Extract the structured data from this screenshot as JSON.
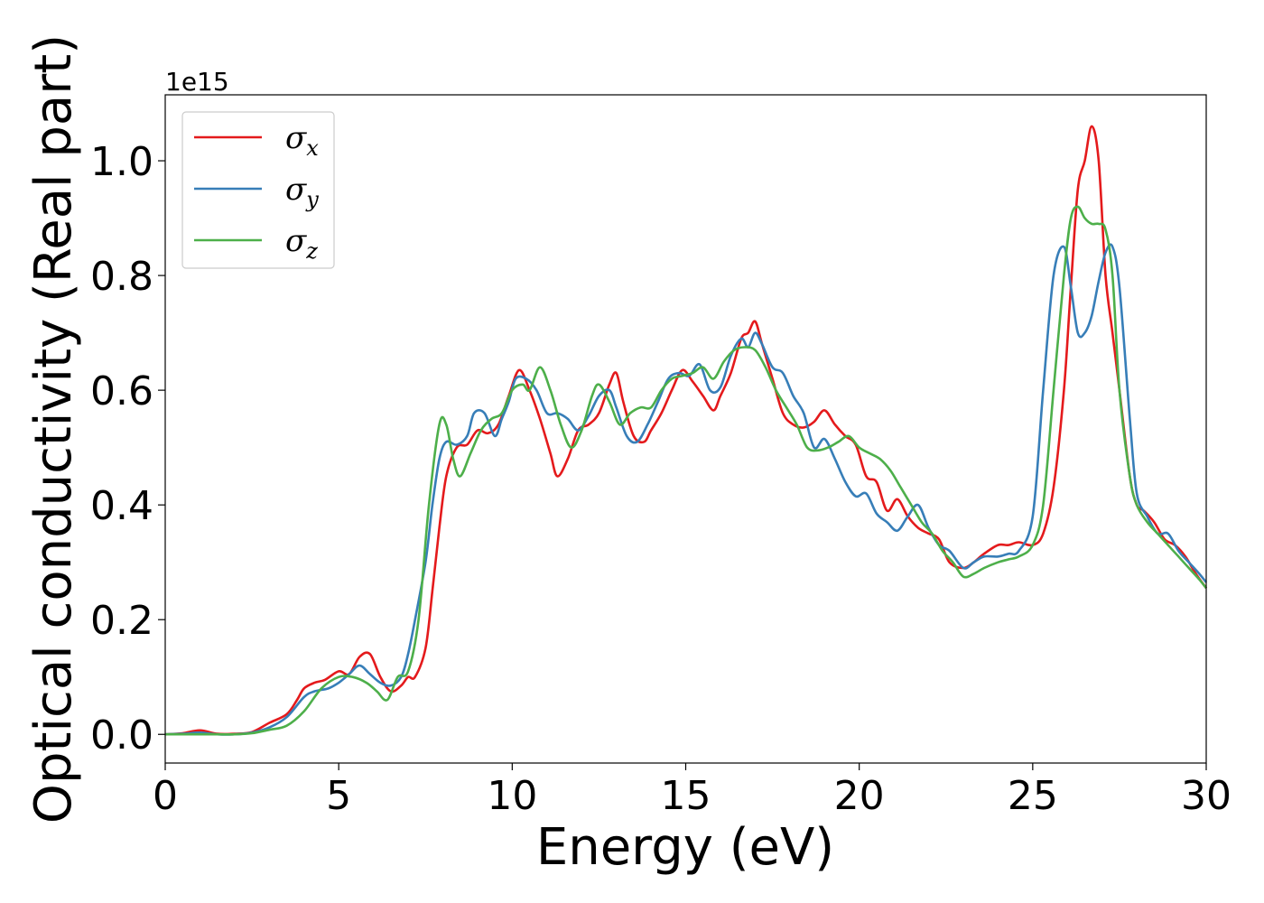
{
  "chart_data": {
    "type": "line",
    "xlabel": "Energy (eV)",
    "ylabel": "Optical conductivity (Real part)",
    "y_offset_label": "1e15",
    "xlim": [
      0,
      30
    ],
    "ylim": [
      -0.05,
      1.115
    ],
    "xticks": [
      0,
      5,
      10,
      15,
      20,
      25,
      30
    ],
    "xtick_labels": [
      "0",
      "5",
      "10",
      "15",
      "20",
      "25",
      "30"
    ],
    "yticks": [
      0.0,
      0.2,
      0.4,
      0.6,
      0.8,
      1.0
    ],
    "ytick_labels": [
      "0.0",
      "0.2",
      "0.4",
      "0.6",
      "0.8",
      "1.0"
    ],
    "grid": false,
    "legend_position": "top-left",
    "series": [
      {
        "name": "σx",
        "subscript": "x",
        "color": "#e41a1c",
        "x": [
          0,
          0.5,
          1,
          1.5,
          2,
          2.5,
          3,
          3.5,
          3.8,
          4,
          4.3,
          4.6,
          5,
          5.3,
          5.6,
          5.9,
          6.2,
          6.5,
          6.8,
          7,
          7.2,
          7.5,
          7.7,
          7.9,
          8.1,
          8.4,
          8.7,
          9,
          9.3,
          9.6,
          9.9,
          10.2,
          10.5,
          10.8,
          11.1,
          11.3,
          11.6,
          11.9,
          12.2,
          12.5,
          12.8,
          13,
          13.2,
          13.5,
          13.8,
          14,
          14.3,
          14.6,
          14.9,
          15.2,
          15.5,
          15.8,
          16,
          16.3,
          16.6,
          16.8,
          17,
          17.2,
          17.5,
          17.8,
          18.1,
          18.4,
          18.7,
          19,
          19.3,
          19.6,
          19.9,
          20.2,
          20.5,
          20.8,
          21.1,
          21.4,
          21.7,
          22,
          22.3,
          22.6,
          23,
          23.3,
          23.6,
          24,
          24.3,
          24.6,
          25,
          25.3,
          25.6,
          25.9,
          26.1,
          26.3,
          26.5,
          26.7,
          26.9,
          27.1,
          27.3,
          27.5,
          27.8,
          28,
          28.2,
          28.5,
          28.8,
          29.1,
          29.4,
          29.7,
          30
        ],
        "y": [
          0.0,
          0.002,
          0.007,
          0.001,
          0.001,
          0.004,
          0.02,
          0.035,
          0.06,
          0.08,
          0.09,
          0.095,
          0.11,
          0.105,
          0.135,
          0.14,
          0.1,
          0.075,
          0.085,
          0.1,
          0.1,
          0.15,
          0.25,
          0.36,
          0.45,
          0.5,
          0.505,
          0.53,
          0.525,
          0.54,
          0.59,
          0.635,
          0.6,
          0.55,
          0.49,
          0.45,
          0.48,
          0.53,
          0.54,
          0.56,
          0.61,
          0.63,
          0.58,
          0.52,
          0.51,
          0.53,
          0.56,
          0.6,
          0.635,
          0.615,
          0.59,
          0.565,
          0.59,
          0.63,
          0.69,
          0.7,
          0.72,
          0.68,
          0.62,
          0.56,
          0.54,
          0.535,
          0.545,
          0.565,
          0.54,
          0.52,
          0.505,
          0.45,
          0.44,
          0.39,
          0.41,
          0.38,
          0.36,
          0.35,
          0.34,
          0.3,
          0.29,
          0.3,
          0.315,
          0.33,
          0.33,
          0.335,
          0.33,
          0.35,
          0.43,
          0.6,
          0.78,
          0.95,
          1.0,
          1.06,
          1.0,
          0.8,
          0.7,
          0.6,
          0.45,
          0.4,
          0.39,
          0.37,
          0.34,
          0.33,
          0.31,
          0.28,
          0.255
        ]
      },
      {
        "name": "σy",
        "subscript": "y",
        "color": "#377eb8",
        "x": [
          0,
          0.5,
          1,
          1.5,
          2,
          2.5,
          3,
          3.5,
          4,
          4.3,
          4.7,
          5,
          5.3,
          5.6,
          5.9,
          6.2,
          6.5,
          6.8,
          7,
          7.2,
          7.5,
          7.7,
          7.9,
          8.1,
          8.4,
          8.7,
          8.9,
          9.2,
          9.5,
          9.7,
          9.9,
          10.1,
          10.4,
          10.7,
          11,
          11.3,
          11.6,
          11.9,
          12.2,
          12.5,
          12.8,
          13,
          13.3,
          13.6,
          13.9,
          14.2,
          14.5,
          14.8,
          15.1,
          15.4,
          15.7,
          16,
          16.3,
          16.6,
          16.8,
          17,
          17.2,
          17.5,
          17.8,
          18.1,
          18.4,
          18.7,
          19,
          19.3,
          19.6,
          19.9,
          20.2,
          20.5,
          20.8,
          21.1,
          21.4,
          21.7,
          22,
          22.3,
          22.6,
          23,
          23.3,
          23.6,
          24,
          24.3,
          24.6,
          25,
          25.3,
          25.6,
          25.9,
          26.1,
          26.3,
          26.5,
          26.7,
          26.9,
          27.1,
          27.3,
          27.5,
          27.8,
          28,
          28.3,
          28.6,
          28.9,
          29.2,
          29.5,
          29.8,
          30
        ],
        "y": [
          0.0,
          0.001,
          0.003,
          0.0,
          0.0,
          0.003,
          0.012,
          0.03,
          0.065,
          0.075,
          0.08,
          0.09,
          0.105,
          0.12,
          0.105,
          0.09,
          0.085,
          0.1,
          0.14,
          0.2,
          0.3,
          0.4,
          0.48,
          0.51,
          0.505,
          0.52,
          0.56,
          0.56,
          0.52,
          0.55,
          0.58,
          0.62,
          0.62,
          0.6,
          0.56,
          0.56,
          0.55,
          0.53,
          0.555,
          0.59,
          0.6,
          0.57,
          0.52,
          0.51,
          0.54,
          0.58,
          0.62,
          0.63,
          0.625,
          0.645,
          0.6,
          0.605,
          0.66,
          0.69,
          0.675,
          0.7,
          0.68,
          0.64,
          0.63,
          0.59,
          0.56,
          0.5,
          0.515,
          0.48,
          0.44,
          0.415,
          0.42,
          0.385,
          0.37,
          0.355,
          0.38,
          0.4,
          0.36,
          0.33,
          0.32,
          0.29,
          0.3,
          0.31,
          0.31,
          0.315,
          0.32,
          0.38,
          0.6,
          0.8,
          0.85,
          0.78,
          0.7,
          0.7,
          0.73,
          0.79,
          0.84,
          0.85,
          0.78,
          0.55,
          0.42,
          0.38,
          0.35,
          0.35,
          0.32,
          0.3,
          0.28,
          0.265
        ]
      },
      {
        "name": "σz",
        "subscript": "z",
        "color": "#4daf4a",
        "x": [
          0,
          0.5,
          1,
          1.5,
          2,
          2.5,
          3,
          3.5,
          4,
          4.5,
          5,
          5.4,
          5.8,
          6.1,
          6.4,
          6.7,
          7,
          7.3,
          7.6,
          7.9,
          8.1,
          8.3,
          8.5,
          8.8,
          9.1,
          9.4,
          9.7,
          10,
          10.3,
          10.5,
          10.8,
          11.1,
          11.4,
          11.7,
          12,
          12.3,
          12.5,
          12.8,
          13.1,
          13.4,
          13.7,
          14,
          14.3,
          14.6,
          14.9,
          15.2,
          15.5,
          15.8,
          16.1,
          16.4,
          16.7,
          17,
          17.3,
          17.6,
          17.9,
          18.2,
          18.5,
          18.8,
          19.1,
          19.4,
          19.7,
          20,
          20.3,
          20.6,
          20.9,
          21.2,
          21.5,
          21.8,
          22.1,
          22.4,
          22.7,
          23,
          23.3,
          23.6,
          24,
          24.3,
          24.6,
          25,
          25.3,
          25.6,
          25.9,
          26.1,
          26.3,
          26.5,
          26.7,
          26.9,
          27.1,
          27.3,
          27.5,
          27.8,
          28,
          28.3,
          28.6,
          28.9,
          29.2,
          29.5,
          29.8,
          30
        ],
        "y": [
          0.0,
          0.0,
          0.0,
          0.0,
          0.0,
          0.002,
          0.008,
          0.015,
          0.04,
          0.08,
          0.1,
          0.1,
          0.09,
          0.075,
          0.06,
          0.1,
          0.11,
          0.2,
          0.4,
          0.54,
          0.54,
          0.48,
          0.45,
          0.49,
          0.53,
          0.55,
          0.56,
          0.6,
          0.61,
          0.6,
          0.64,
          0.6,
          0.54,
          0.5,
          0.53,
          0.59,
          0.61,
          0.58,
          0.54,
          0.56,
          0.57,
          0.57,
          0.6,
          0.62,
          0.625,
          0.63,
          0.64,
          0.62,
          0.65,
          0.67,
          0.675,
          0.67,
          0.64,
          0.6,
          0.57,
          0.54,
          0.5,
          0.495,
          0.5,
          0.51,
          0.52,
          0.5,
          0.49,
          0.48,
          0.46,
          0.43,
          0.4,
          0.37,
          0.35,
          0.32,
          0.3,
          0.275,
          0.28,
          0.29,
          0.3,
          0.305,
          0.31,
          0.33,
          0.4,
          0.6,
          0.8,
          0.9,
          0.92,
          0.9,
          0.89,
          0.89,
          0.88,
          0.8,
          0.6,
          0.45,
          0.4,
          0.37,
          0.35,
          0.33,
          0.31,
          0.29,
          0.27,
          0.255
        ]
      }
    ]
  }
}
